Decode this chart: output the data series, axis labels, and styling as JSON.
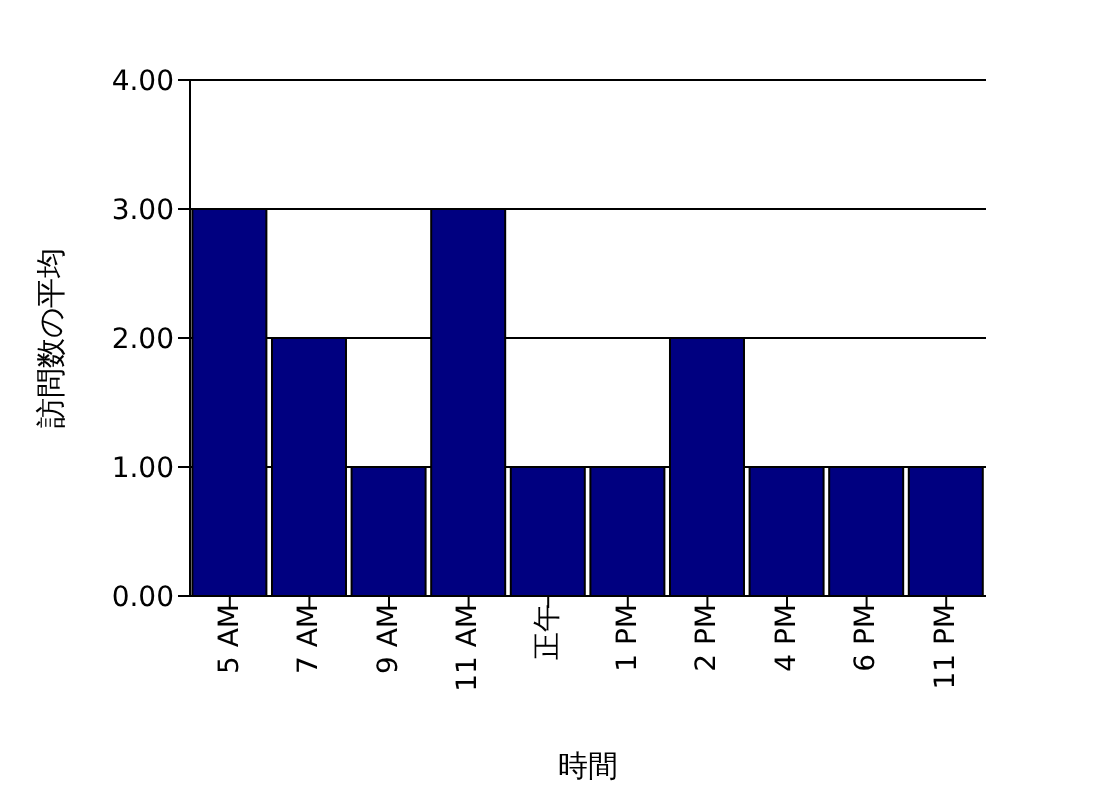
{
  "chart_data": {
    "type": "bar",
    "xlabel": "時間",
    "ylabel": "訪問数の平均",
    "categories": [
      "5 AM",
      "7 AM",
      "9 AM",
      "11 AM",
      "正午",
      "1 PM",
      "2 PM",
      "4 PM",
      "6 PM",
      "11 PM"
    ],
    "values": [
      3,
      2,
      1,
      3,
      1,
      1,
      2,
      1,
      1,
      1
    ],
    "color": "#000080",
    "ylim": [
      0,
      4
    ],
    "yticks": [
      {
        "value": 0,
        "label": "0.00"
      },
      {
        "value": 1,
        "label": "1.00"
      },
      {
        "value": 2,
        "label": "2.00"
      },
      {
        "value": 3,
        "label": "3.00"
      },
      {
        "value": 4,
        "label": "4.00"
      }
    ],
    "grid": "y",
    "legend": false
  }
}
